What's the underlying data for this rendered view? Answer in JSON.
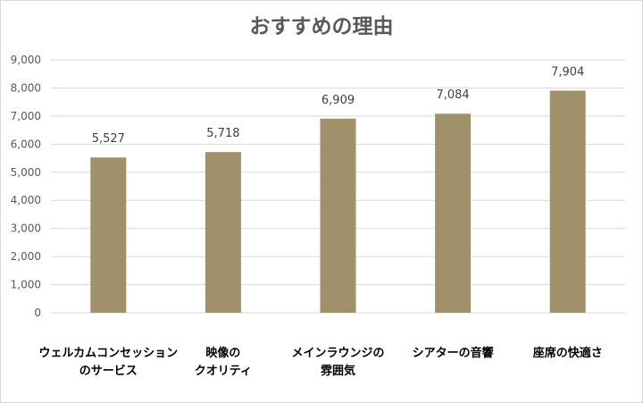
{
  "chart_data": {
    "type": "bar",
    "title": "おすすめの理由",
    "xlabel": "",
    "ylabel": "",
    "categories": [
      [
        "ウェルカムコンセッション",
        "のサービス"
      ],
      [
        "映像の",
        "クオリティ"
      ],
      [
        "メインラウンジの",
        "雰囲気"
      ],
      [
        "シアターの音響"
      ],
      [
        "座席の快適さ"
      ]
    ],
    "values": [
      5527,
      5718,
      6909,
      7084,
      7904
    ],
    "value_labels": [
      "5,527",
      "5,718",
      "6,909",
      "7,084",
      "7,904"
    ],
    "ylim": [
      0,
      9000
    ],
    "yticks": [
      0,
      1000,
      2000,
      3000,
      4000,
      5000,
      6000,
      7000,
      8000,
      9000
    ],
    "ytick_labels": [
      "0",
      "1,000",
      "2,000",
      "3,000",
      "4,000",
      "5,000",
      "6,000",
      "7,000",
      "8,000",
      "9,000"
    ],
    "grid": true,
    "legend": "none",
    "bar_color": "#a0916b"
  }
}
